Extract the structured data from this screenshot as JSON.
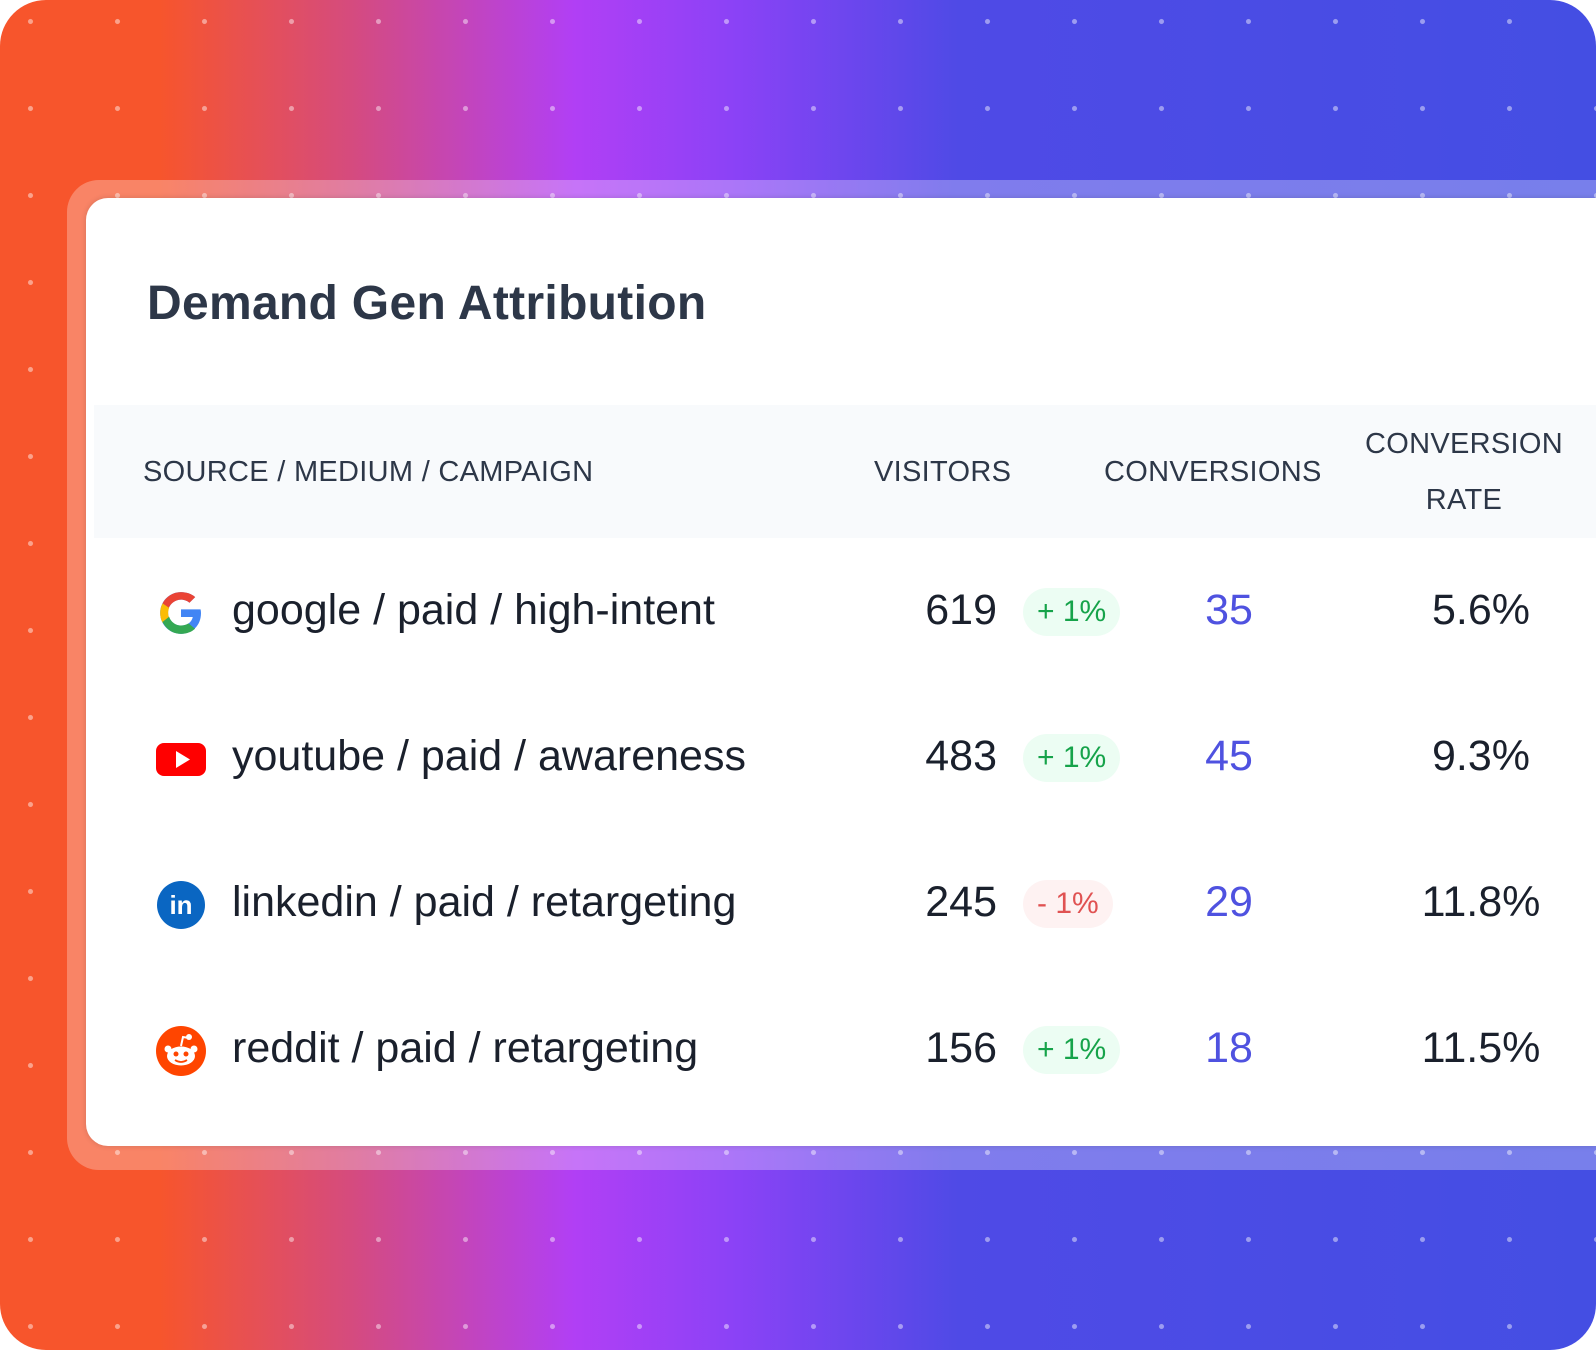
{
  "title": "Demand Gen Attribution",
  "columns": {
    "source": "SOURCE / MEDIUM / CAMPAIGN",
    "visitors": "VISITORS",
    "conversions": "CONVERSIONS",
    "rate_line1": "CONVERSION",
    "rate_line2": "RATE"
  },
  "colors": {
    "positive": "#16a34a",
    "negative": "#e05252",
    "conversions": "#4f52e0"
  },
  "rows": [
    {
      "icon": "google-icon",
      "label": "google / paid / high-intent",
      "visitors": "619",
      "change": "+ 1%",
      "trend": "up",
      "conversions": "35",
      "rate": "5.6%"
    },
    {
      "icon": "youtube-icon",
      "label": "youtube / paid / awareness",
      "visitors": "483",
      "change": "+ 1%",
      "trend": "up",
      "conversions": "45",
      "rate": "9.3%"
    },
    {
      "icon": "linkedin-icon",
      "label": "linkedin / paid / retargeting",
      "visitors": "245",
      "change": "- 1%",
      "trend": "down",
      "conversions": "29",
      "rate": "11.8%"
    },
    {
      "icon": "reddit-icon",
      "label": "reddit / paid / retargeting",
      "visitors": "156",
      "change": "+ 1%",
      "trend": "up",
      "conversions": "18",
      "rate": "11.5%"
    }
  ]
}
